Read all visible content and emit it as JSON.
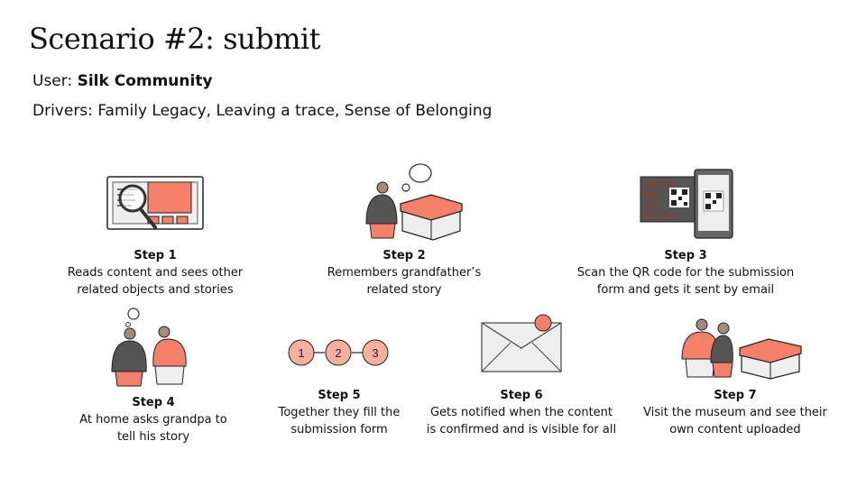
{
  "title": "Scenario #2: submit",
  "user_label": "User:",
  "user_name": "Silk Community",
  "drivers_label": "Drivers:",
  "drivers": "Family Legacy, Leaving a trace, Sense of Belonging",
  "colors": {
    "accent": "#f4806a",
    "dark": "#555555",
    "skin": "#a58a7e",
    "light": "#eeeeee"
  },
  "progress_numbers": [
    "1",
    "2",
    "3"
  ],
  "steps": [
    {
      "title": "Step 1",
      "line1": "Reads content and sees other",
      "line2": "related objects and stories",
      "icon": "browser-magnifier-icon"
    },
    {
      "title": "Step 2",
      "line1": "Remembers grandfather’s",
      "line2": "related story",
      "icon": "person-thinking-box-icon"
    },
    {
      "title": "Step 3",
      "line1": "Scan the QR code for the submission",
      "line2": "form and gets it sent by email",
      "icon": "phone-qr-scan-icon"
    },
    {
      "title": "Step 4",
      "line1": "At home asks grandpa to",
      "line2": "tell his story",
      "icon": "two-people-talking-icon"
    },
    {
      "title": "Step 5",
      "line1": "Together they fill the",
      "line2": "submission form",
      "icon": "numbered-steps-icon"
    },
    {
      "title": "Step 6",
      "line1": "Gets notified when the content",
      "line2": "is confirmed and is visible for all",
      "icon": "envelope-notification-icon"
    },
    {
      "title": "Step 7",
      "line1": "Visit the museum and see their",
      "line2": "own content uploaded",
      "icon": "people-at-exhibit-icon"
    }
  ]
}
